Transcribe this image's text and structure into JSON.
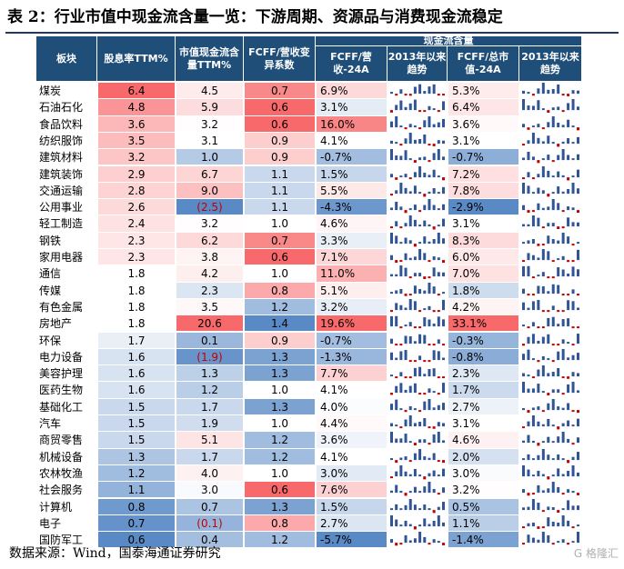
{
  "title": "表 2：行业市值中现金流含量一览：下游周期、资源品与消费现金流稳定",
  "source": "数据来源：Wind，国泰海通证券研究",
  "watermark": "G 格隆汇",
  "colors": {
    "header": "#1f4e79",
    "neg_text": "#c00000",
    "bar_pos": "#2f5597",
    "bar_neg": "#c00000"
  },
  "chart_data": {
    "type": "table",
    "group_header": "现金流含量",
    "columns": [
      "板块",
      "股息率TTM%",
      "市值现金流含量TTM%",
      "FCFF/营收变异系数",
      "FCFF/营收-24A",
      "2013年以来趋势",
      "FCFF/总市值-24A",
      "2013年以来趋势"
    ],
    "rows": [
      {
        "sector": "煤炭",
        "div": 6.4,
        "mcf": 4.5,
        "cv": 0.7,
        "fr": 6.9,
        "fm": 5.3
      },
      {
        "sector": "石油石化",
        "div": 4.8,
        "mcf": 5.9,
        "cv": 0.6,
        "fr": 3.1,
        "fm": 6.4
      },
      {
        "sector": "食品饮料",
        "div": 3.6,
        "mcf": 3.2,
        "cv": 0.6,
        "fr": 16.0,
        "fm": 3.6
      },
      {
        "sector": "纺织服饰",
        "div": 3.5,
        "mcf": 3.1,
        "cv": 0.9,
        "fr": 4.1,
        "fm": 3.1
      },
      {
        "sector": "建筑材料",
        "div": 3.2,
        "mcf": 1.0,
        "cv": 0.9,
        "fr": -0.7,
        "fm": -0.7
      },
      {
        "sector": "建筑装饰",
        "div": 2.9,
        "mcf": 6.7,
        "cv": 1.1,
        "fr": 1.5,
        "fm": 7.2
      },
      {
        "sector": "交通运输",
        "div": 2.8,
        "mcf": 9.0,
        "cv": 1.1,
        "fr": 5.5,
        "fm": 7.8
      },
      {
        "sector": "公用事业",
        "div": 2.6,
        "mcf": -2.5,
        "cv": 1.1,
        "fr": -4.3,
        "fm": -2.9
      },
      {
        "sector": "轻工制造",
        "div": 2.4,
        "mcf": 3.2,
        "cv": 1.0,
        "fr": 4.6,
        "fm": 3.1
      },
      {
        "sector": "钢铁",
        "div": 2.3,
        "mcf": 6.2,
        "cv": 0.7,
        "fr": 3.3,
        "fm": 8.3
      },
      {
        "sector": "家用电器",
        "div": 2.3,
        "mcf": 3.8,
        "cv": 0.6,
        "fr": 7.1,
        "fm": 6.0
      },
      {
        "sector": "通信",
        "div": 1.8,
        "mcf": 4.2,
        "cv": 1.0,
        "fr": 11.0,
        "fm": 7.0
      },
      {
        "sector": "传媒",
        "div": 1.8,
        "mcf": 2.3,
        "cv": 0.8,
        "fr": 5.1,
        "fm": 1.8
      },
      {
        "sector": "有色金属",
        "div": 1.8,
        "mcf": 3.5,
        "cv": 1.2,
        "fr": 3.2,
        "fm": 4.2
      },
      {
        "sector": "房地产",
        "div": 1.8,
        "mcf": 20.6,
        "cv": 1.4,
        "fr": 19.6,
        "fm": 33.1
      },
      {
        "sector": "环保",
        "div": 1.7,
        "mcf": 0.1,
        "cv": 0.9,
        "fr": -0.7,
        "fm": -0.3
      },
      {
        "sector": "电力设备",
        "div": 1.6,
        "mcf": -1.9,
        "cv": 1.3,
        "fr": -1.3,
        "fm": -0.8
      },
      {
        "sector": "美容护理",
        "div": 1.6,
        "mcf": 1.3,
        "cv": 1.3,
        "fr": 7.7,
        "fm": 2.3
      },
      {
        "sector": "医药生物",
        "div": 1.6,
        "mcf": 1.2,
        "cv": 1.0,
        "fr": 4.1,
        "fm": 1.7
      },
      {
        "sector": "基础化工",
        "div": 1.5,
        "mcf": 1.7,
        "cv": 1.3,
        "fr": 4.0,
        "fm": 2.7
      },
      {
        "sector": "汽车",
        "div": 1.5,
        "mcf": 1.9,
        "cv": 1.0,
        "fr": 4.4,
        "fm": 3.1
      },
      {
        "sector": "商贸零售",
        "div": 1.5,
        "mcf": 5.1,
        "cv": 1.2,
        "fr": 3.6,
        "fm": 4.6
      },
      {
        "sector": "机械设备",
        "div": 1.3,
        "mcf": 1.7,
        "cv": 1.2,
        "fr": 4.1,
        "fm": 2.0
      },
      {
        "sector": "农林牧渔",
        "div": 1.2,
        "mcf": 4.0,
        "cv": 1.0,
        "fr": 3.0,
        "fm": 3.0
      },
      {
        "sector": "社会服务",
        "div": 1.1,
        "mcf": 3.0,
        "cv": 0.6,
        "fr": 7.6,
        "fm": 3.2
      },
      {
        "sector": "计算机",
        "div": 0.8,
        "mcf": 0.7,
        "cv": 1.3,
        "fr": 1.5,
        "fm": 0.5
      },
      {
        "sector": "电子",
        "div": 0.7,
        "mcf": -0.1,
        "cv": 0.8,
        "fr": 2.7,
        "fm": 1.1
      },
      {
        "sector": "国防军工",
        "div": 0.6,
        "mcf": 0.4,
        "cv": 1.2,
        "fr": -5.7,
        "fm": -1.4
      }
    ]
  }
}
